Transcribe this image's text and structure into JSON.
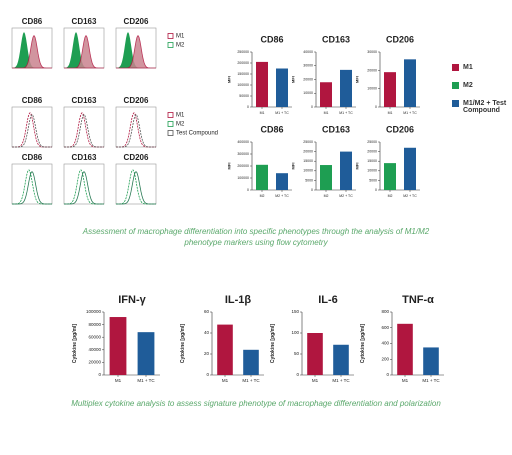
{
  "histograms": {
    "rows": [
      {
        "titles": [
          "CD86",
          "CD163",
          "CD206"
        ],
        "legend": [
          "M1",
          "M2"
        ]
      },
      {
        "titles": [
          "CD86",
          "CD163",
          "CD206"
        ],
        "legend": [
          "M1",
          "M2",
          "Test Compound"
        ]
      },
      {
        "titles": [
          "CD86",
          "CD163",
          "CD206"
        ],
        "legend": []
      }
    ]
  },
  "legend": [
    {
      "name": "M1",
      "color": "#b0163f"
    },
    {
      "name": "M2",
      "color": "#1e9e52"
    },
    {
      "name": "M1/M2 + Test Compound",
      "color": "#1f5c99"
    }
  ],
  "captions": [
    "Assessment of macrophage differentiation into specific phenotypes through the analysis of M1/M2 phenotype markers using flow cytometry",
    "Multiplex cytokine analysis to assess signature phenotype of macrophage differentiation and polarization"
  ],
  "chart_data": [
    {
      "type": "bar",
      "title": "CD86",
      "ylabel": "MFI",
      "categories": [
        "M1",
        "M1 + TC"
      ],
      "values": [
        205000,
        175000
      ],
      "colors": [
        "#b0163f",
        "#1f5c99"
      ],
      "ylim": [
        0,
        250000
      ],
      "yticks": [
        0,
        50000,
        100000,
        150000,
        200000,
        250000
      ]
    },
    {
      "type": "bar",
      "title": "CD163",
      "ylabel": "MFI",
      "categories": [
        "M1",
        "M1 + TC"
      ],
      "values": [
        18000,
        27000
      ],
      "colors": [
        "#b0163f",
        "#1f5c99"
      ],
      "ylim": [
        0,
        40000
      ],
      "yticks": [
        0,
        10000,
        20000,
        30000,
        40000
      ]
    },
    {
      "type": "bar",
      "title": "CD206",
      "ylabel": "MFI",
      "categories": [
        "M1",
        "M1 + TC"
      ],
      "values": [
        19000,
        26000
      ],
      "colors": [
        "#b0163f",
        "#1f5c99"
      ],
      "ylim": [
        0,
        30000
      ],
      "yticks": [
        0,
        10000,
        20000,
        30000
      ]
    },
    {
      "type": "bar",
      "title": "CD86",
      "ylabel": "MFI",
      "categories": [
        "M2",
        "M2 + TC"
      ],
      "values": [
        210000,
        140000
      ],
      "colors": [
        "#1e9e52",
        "#1f5c99"
      ],
      "ylim": [
        0,
        400000
      ],
      "yticks": [
        0,
        100000,
        200000,
        300000,
        400000
      ]
    },
    {
      "type": "bar",
      "title": "CD163",
      "ylabel": "MFI",
      "categories": [
        "M2",
        "M2 + TC"
      ],
      "values": [
        13000,
        20000
      ],
      "colors": [
        "#1e9e52",
        "#1f5c99"
      ],
      "ylim": [
        0,
        25000
      ],
      "yticks": [
        0,
        5000,
        10000,
        15000,
        20000,
        25000
      ]
    },
    {
      "type": "bar",
      "title": "CD206",
      "ylabel": "MFI",
      "categories": [
        "M2",
        "M2 + TC"
      ],
      "values": [
        14000,
        22000
      ],
      "colors": [
        "#1e9e52",
        "#1f5c99"
      ],
      "ylim": [
        0,
        25000
      ],
      "yticks": [
        0,
        5000,
        10000,
        15000,
        20000,
        25000
      ]
    },
    {
      "type": "bar",
      "title": "IFN-γ",
      "ylabel": "Cytokine [pg/ml]",
      "categories": [
        "M1",
        "M1 + TC"
      ],
      "values": [
        92000,
        68000
      ],
      "colors": [
        "#b0163f",
        "#1f5c99"
      ],
      "ylim": [
        0,
        100000
      ],
      "yticks": [
        0,
        20000,
        40000,
        60000,
        80000,
        100000
      ]
    },
    {
      "type": "bar",
      "title": "IL-1β",
      "ylabel": "Cytokine [pg/ml]",
      "categories": [
        "M1",
        "M1 + TC"
      ],
      "values": [
        48,
        24
      ],
      "colors": [
        "#b0163f",
        "#1f5c99"
      ],
      "ylim": [
        0,
        60
      ],
      "yticks": [
        0,
        20,
        40,
        60
      ]
    },
    {
      "type": "bar",
      "title": "IL-6",
      "ylabel": "Cytokine [pg/ml]",
      "categories": [
        "M1",
        "M1 + TC"
      ],
      "values": [
        100,
        72
      ],
      "colors": [
        "#b0163f",
        "#1f5c99"
      ],
      "ylim": [
        0,
        150
      ],
      "yticks": [
        0,
        50,
        100,
        150
      ]
    },
    {
      "type": "bar",
      "title": "TNF-α",
      "ylabel": "Cytokine [pg/ml]",
      "categories": [
        "M1",
        "M1 + TC"
      ],
      "values": [
        650,
        350
      ],
      "colors": [
        "#b0163f",
        "#1f5c99"
      ],
      "ylim": [
        0,
        800
      ],
      "yticks": [
        0,
        200,
        400,
        600,
        800
      ]
    }
  ]
}
